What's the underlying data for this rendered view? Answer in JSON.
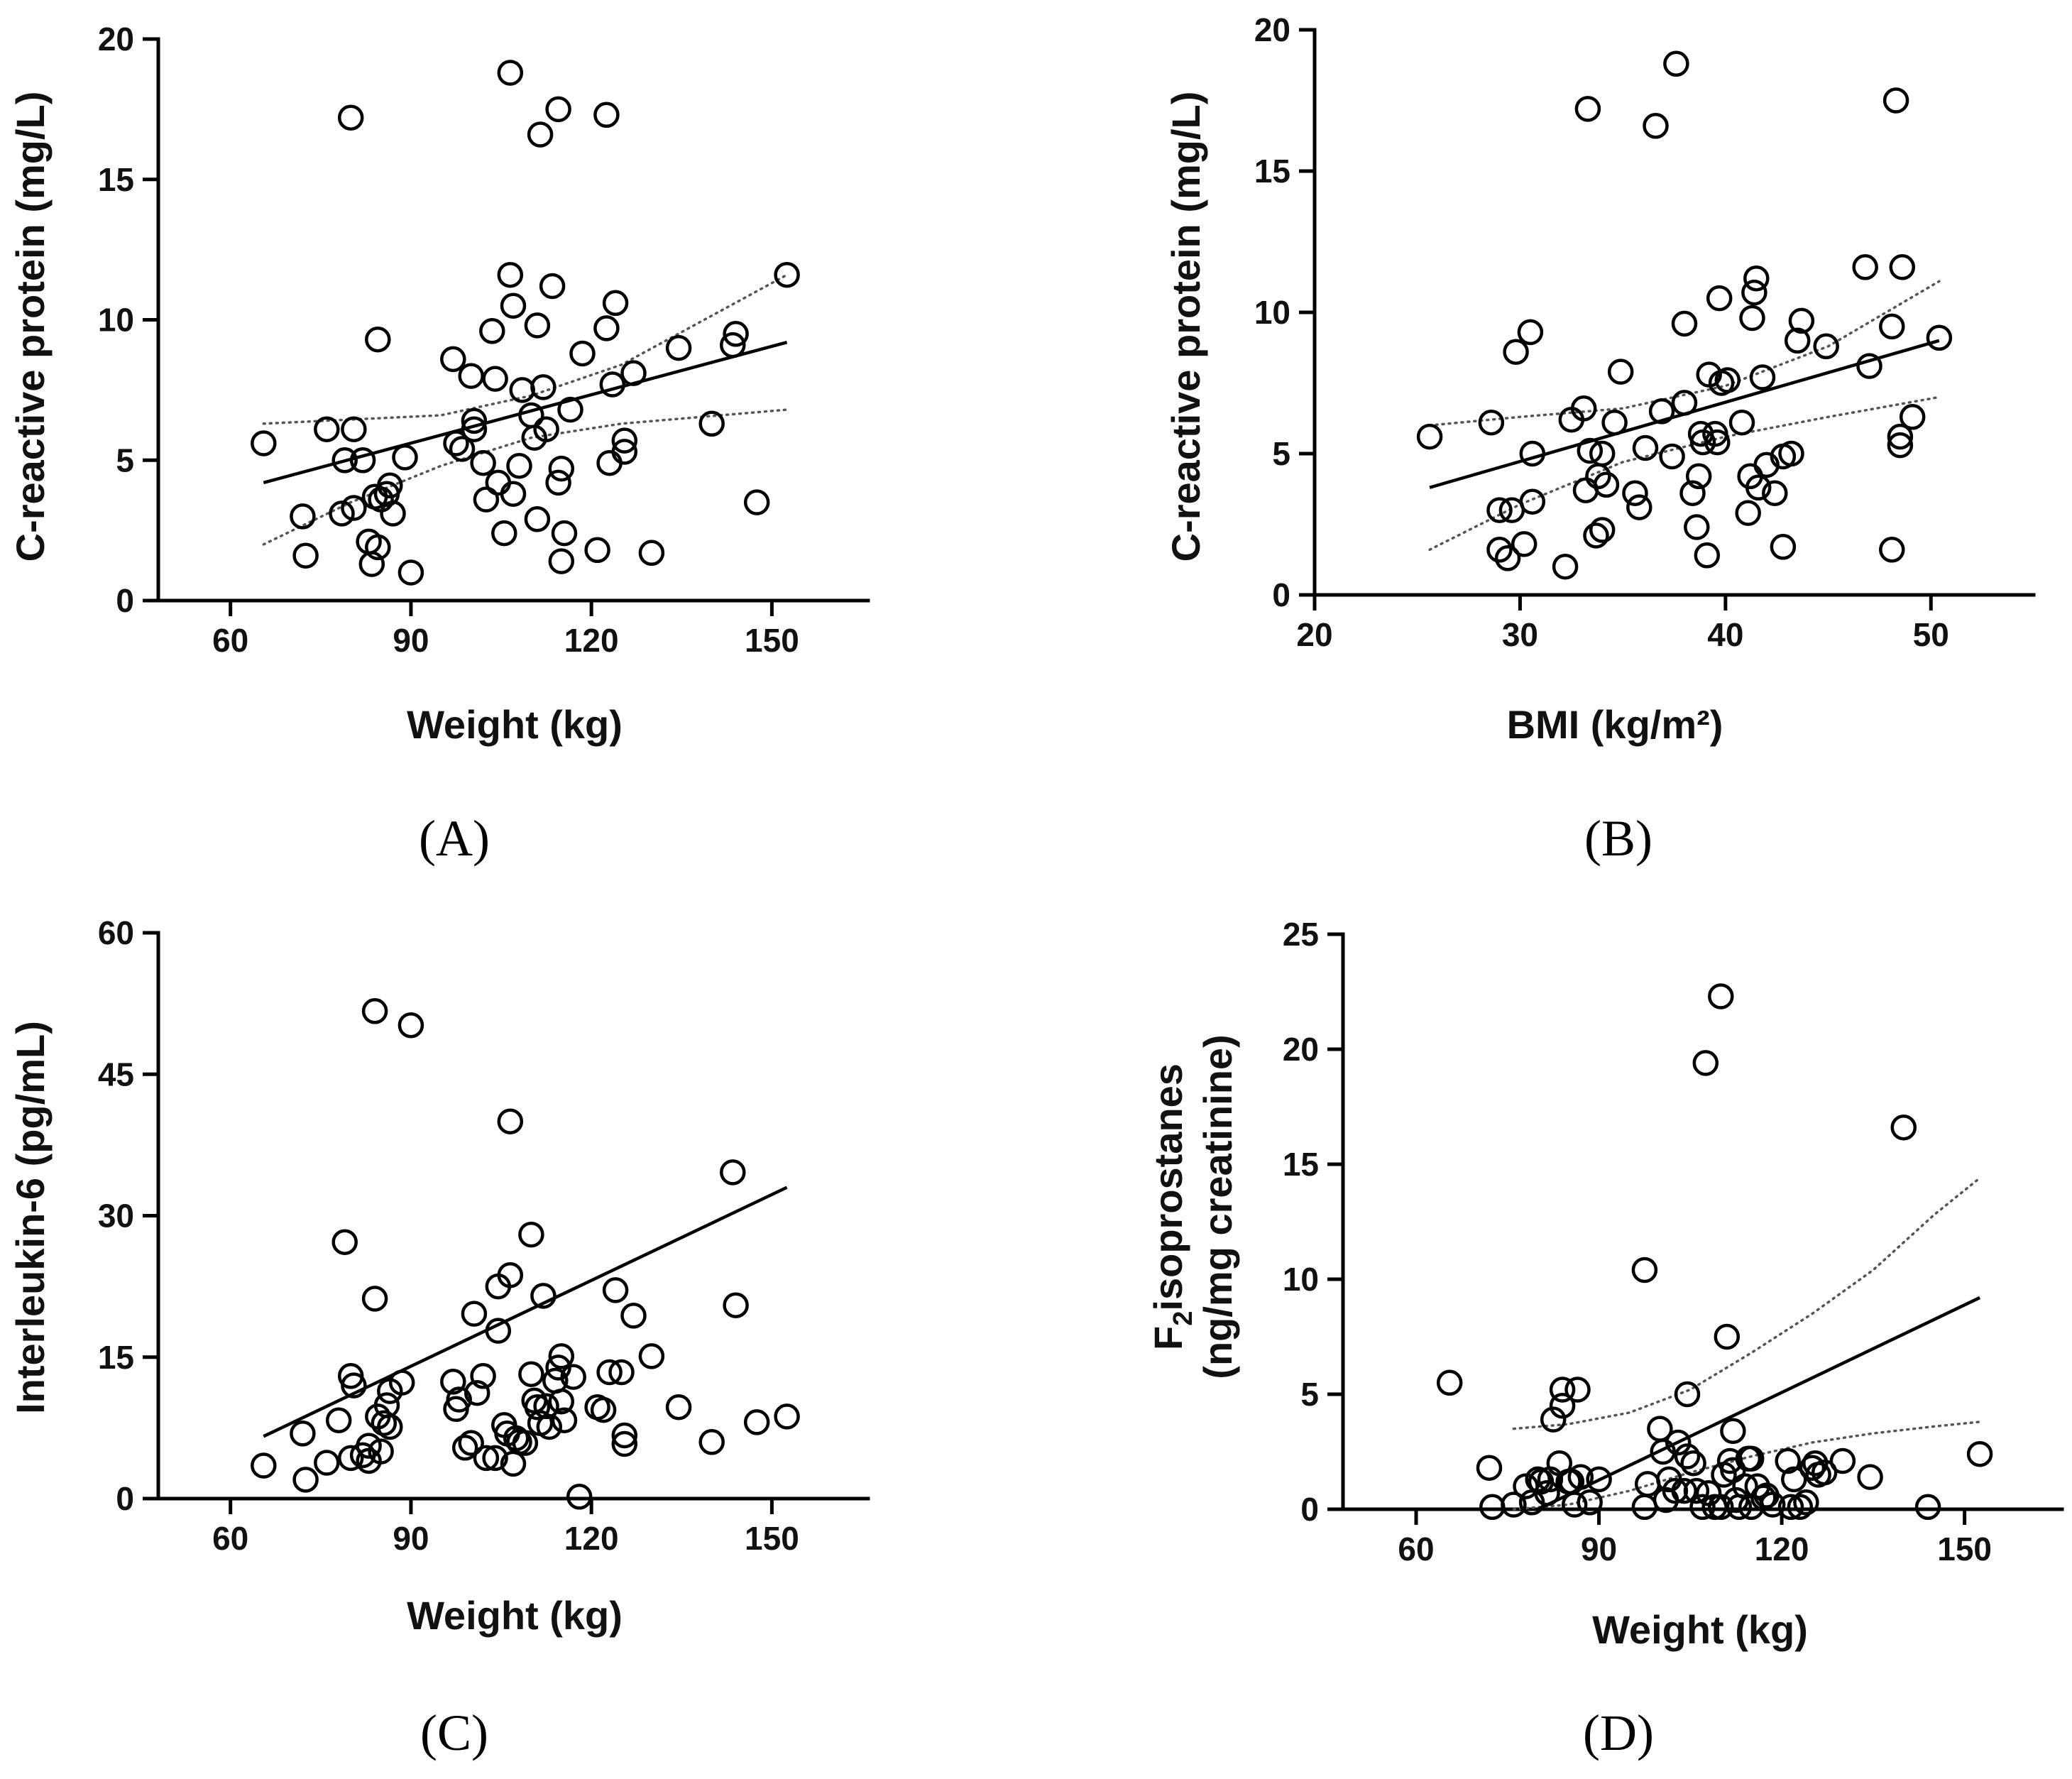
{
  "chart_data": [
    {
      "type": "scatter",
      "panel_label": "(A)",
      "title": "",
      "xlabel": "Weight (kg)",
      "ylabel": "C-reactive protein (mg/L)",
      "xlim": [
        48,
        166
      ],
      "ylim": [
        0,
        20
      ],
      "xticks": [
        60,
        90,
        120,
        150
      ],
      "yticks": [
        0,
        5,
        10,
        15,
        20
      ],
      "points": [
        [
          65.5,
          5.6
        ],
        [
          72,
          3.0
        ],
        [
          72.5,
          1.6
        ],
        [
          76,
          6.1
        ],
        [
          78.5,
          3.1
        ],
        [
          79,
          5.0
        ],
        [
          80,
          17.2
        ],
        [
          80.5,
          3.3
        ],
        [
          80.5,
          6.1
        ],
        [
          82,
          5.0
        ],
        [
          83,
          2.1
        ],
        [
          83.5,
          1.3
        ],
        [
          84,
          3.7
        ],
        [
          84.5,
          9.3
        ],
        [
          84.5,
          1.9
        ],
        [
          85,
          3.6
        ],
        [
          86,
          3.8
        ],
        [
          86.5,
          4.1
        ],
        [
          87,
          3.1
        ],
        [
          89,
          5.1
        ],
        [
          90,
          1.0
        ],
        [
          97,
          8.6
        ],
        [
          97.5,
          5.6
        ],
        [
          98.5,
          5.4
        ],
        [
          100,
          8.0
        ],
        [
          100.5,
          6.4
        ],
        [
          100.5,
          6.1
        ],
        [
          102,
          4.9
        ],
        [
          102.5,
          3.6
        ],
        [
          103.5,
          9.6
        ],
        [
          104,
          7.9
        ],
        [
          104.5,
          4.2
        ],
        [
          105.5,
          2.4
        ],
        [
          106.5,
          18.8
        ],
        [
          106.5,
          11.6
        ],
        [
          107,
          10.5
        ],
        [
          107,
          3.8
        ],
        [
          108,
          4.8
        ],
        [
          108.5,
          7.5
        ],
        [
          110,
          6.6
        ],
        [
          110.5,
          5.8
        ],
        [
          111,
          2.9
        ],
        [
          111,
          9.8
        ],
        [
          111.5,
          16.6
        ],
        [
          112,
          7.6
        ],
        [
          112.5,
          6.1
        ],
        [
          113.5,
          11.2
        ],
        [
          114.5,
          17.5
        ],
        [
          114.5,
          4.2
        ],
        [
          115,
          1.4
        ],
        [
          115,
          4.7
        ],
        [
          115.5,
          2.4
        ],
        [
          116.5,
          6.8
        ],
        [
          118.5,
          8.8
        ],
        [
          121,
          1.8
        ],
        [
          122.5,
          9.7
        ],
        [
          122.5,
          17.3
        ],
        [
          123,
          4.9
        ],
        [
          123.5,
          7.7
        ],
        [
          124,
          10.6
        ],
        [
          125.5,
          5.7
        ],
        [
          125.5,
          5.3
        ],
        [
          127,
          8.1
        ],
        [
          130,
          1.7
        ],
        [
          134.5,
          9.0
        ],
        [
          140,
          6.3
        ],
        [
          143.5,
          9.1
        ],
        [
          144,
          9.5
        ],
        [
          147.5,
          3.5
        ],
        [
          152.5,
          11.6
        ]
      ],
      "fit_line": {
        "x": [
          65.5,
          152.5
        ],
        "y": [
          4.2,
          9.2
        ]
      },
      "ci_upper": {
        "x": [
          65.5,
          95,
          110,
          125,
          152.5
        ],
        "y": [
          6.3,
          6.6,
          7.3,
          8.4,
          11.6
        ]
      },
      "ci_lower": {
        "x": [
          65.5,
          80,
          95,
          110,
          125,
          152.5
        ],
        "y": [
          2.0,
          3.5,
          4.8,
          5.8,
          6.3,
          6.8
        ]
      }
    },
    {
      "type": "scatter",
      "panel_label": "(B)",
      "title": "",
      "xlabel": "BMI (kg/m²)",
      "ylabel": "C-reactive protein (mg/L)",
      "xlim": [
        20,
        55
      ],
      "ylim": [
        0,
        20
      ],
      "xticks": [
        20,
        30,
        40,
        50
      ],
      "yticks": [
        0,
        5,
        10,
        15,
        20
      ],
      "points": [
        [
          25.6,
          5.6
        ],
        [
          28.6,
          6.1
        ],
        [
          29,
          3.0
        ],
        [
          29,
          1.6
        ],
        [
          29.4,
          1.3
        ],
        [
          29.6,
          3.0
        ],
        [
          29.8,
          8.6
        ],
        [
          30.2,
          1.8
        ],
        [
          30.5,
          9.3
        ],
        [
          30.6,
          3.3
        ],
        [
          30.6,
          5.0
        ],
        [
          32.2,
          1.0
        ],
        [
          32.5,
          6.2
        ],
        [
          33.1,
          6.6
        ],
        [
          33.2,
          3.7
        ],
        [
          33.3,
          17.2
        ],
        [
          33.4,
          5.1
        ],
        [
          33.7,
          2.1
        ],
        [
          33.8,
          4.2
        ],
        [
          34,
          5.0
        ],
        [
          34,
          2.3
        ],
        [
          34.2,
          3.9
        ],
        [
          34.6,
          6.1
        ],
        [
          34.9,
          7.9
        ],
        [
          35.6,
          3.6
        ],
        [
          35.8,
          3.1
        ],
        [
          36.1,
          5.2
        ],
        [
          36.6,
          16.6
        ],
        [
          36.9,
          6.5
        ],
        [
          37.4,
          4.9
        ],
        [
          37.6,
          18.8
        ],
        [
          38,
          6.8
        ],
        [
          38,
          9.6
        ],
        [
          38.4,
          3.6
        ],
        [
          38.6,
          2.4
        ],
        [
          38.7,
          4.2
        ],
        [
          38.8,
          5.7
        ],
        [
          38.9,
          5.4
        ],
        [
          39.1,
          1.4
        ],
        [
          39.2,
          7.8
        ],
        [
          39.5,
          5.7
        ],
        [
          39.6,
          5.4
        ],
        [
          39.7,
          10.5
        ],
        [
          39.8,
          7.5
        ],
        [
          40.1,
          7.6
        ],
        [
          40.8,
          6.1
        ],
        [
          41.1,
          2.9
        ],
        [
          41.2,
          4.2
        ],
        [
          41.3,
          9.8
        ],
        [
          41.4,
          10.7
        ],
        [
          41.5,
          11.2
        ],
        [
          41.6,
          3.8
        ],
        [
          41.8,
          7.7
        ],
        [
          42,
          4.6
        ],
        [
          42.4,
          3.6
        ],
        [
          42.8,
          4.9
        ],
        [
          42.8,
          1.7
        ],
        [
          43.2,
          5.0
        ],
        [
          43.5,
          9.0
        ],
        [
          43.7,
          9.7
        ],
        [
          44.9,
          8.8
        ],
        [
          46.8,
          11.6
        ],
        [
          47,
          8.1
        ],
        [
          48.1,
          1.6
        ],
        [
          48.1,
          9.5
        ],
        [
          48.3,
          17.5
        ],
        [
          48.5,
          5.6
        ],
        [
          48.5,
          5.3
        ],
        [
          48.6,
          11.6
        ],
        [
          49.1,
          6.3
        ],
        [
          50.4,
          9.1
        ]
      ],
      "fit_line": {
        "x": [
          25.6,
          50.4
        ],
        "y": [
          3.8,
          9.0
        ]
      },
      "ci_upper": {
        "x": [
          25.6,
          30,
          35,
          40,
          45,
          50.4
        ],
        "y": [
          6.0,
          6.3,
          6.6,
          7.4,
          8.8,
          11.1
        ]
      },
      "ci_lower": {
        "x": [
          25.6,
          30,
          35,
          40,
          45,
          50.4
        ],
        "y": [
          1.6,
          3.2,
          4.7,
          5.6,
          6.3,
          7.0
        ]
      }
    },
    {
      "type": "scatter",
      "panel_label": "(C)",
      "title": "",
      "xlabel": "Weight (kg)",
      "ylabel": "Interleukin-6 (pg/mL)",
      "xlim": [
        48,
        166
      ],
      "ylim": [
        0,
        60
      ],
      "xticks": [
        60,
        90,
        120,
        150
      ],
      "yticks": [
        0,
        15,
        30,
        45,
        60
      ],
      "points": [
        [
          65.5,
          3.5
        ],
        [
          72,
          6.9
        ],
        [
          72.5,
          2.0
        ],
        [
          76,
          3.8
        ],
        [
          78,
          8.3
        ],
        [
          79,
          27.2
        ],
        [
          80,
          13.0
        ],
        [
          80,
          4.3
        ],
        [
          80.5,
          12.0
        ],
        [
          82,
          4.6
        ],
        [
          83,
          5.6
        ],
        [
          83,
          4.0
        ],
        [
          84,
          51.7
        ],
        [
          84,
          21.2
        ],
        [
          84.5,
          8.7
        ],
        [
          85,
          5.0
        ],
        [
          85.5,
          8.0
        ],
        [
          86.5,
          11.4
        ],
        [
          86.5,
          7.6
        ],
        [
          86,
          9.9
        ],
        [
          88.5,
          12.3
        ],
        [
          90,
          50.2
        ],
        [
          97,
          12.4
        ],
        [
          97.5,
          9.5
        ],
        [
          98,
          10.5
        ],
        [
          99,
          5.4
        ],
        [
          100,
          5.9
        ],
        [
          100.5,
          19.6
        ],
        [
          101,
          11.2
        ],
        [
          102,
          13.0
        ],
        [
          102.5,
          4.3
        ],
        [
          104,
          4.3
        ],
        [
          104.5,
          17.8
        ],
        [
          104.5,
          22.5
        ],
        [
          105.5,
          7.8
        ],
        [
          106,
          6.9
        ],
        [
          106.5,
          40.0
        ],
        [
          106.5,
          23.7
        ],
        [
          107,
          3.7
        ],
        [
          107.5,
          6.4
        ],
        [
          108,
          6.0
        ],
        [
          109,
          5.9
        ],
        [
          110,
          28.0
        ],
        [
          110,
          13.2
        ],
        [
          110.5,
          10.4
        ],
        [
          111,
          9.7
        ],
        [
          111.5,
          8.0
        ],
        [
          112,
          21.5
        ],
        [
          112.5,
          9.8
        ],
        [
          113,
          7.6
        ],
        [
          114,
          12.5
        ],
        [
          114.5,
          13.9
        ],
        [
          115,
          15.1
        ],
        [
          115.5,
          8.3
        ],
        [
          115,
          10.3
        ],
        [
          117,
          12.9
        ],
        [
          118,
          0.2
        ],
        [
          121,
          9.7
        ],
        [
          122,
          9.4
        ],
        [
          123,
          13.4
        ],
        [
          124,
          22.1
        ],
        [
          125,
          13.4
        ],
        [
          125.5,
          6.7
        ],
        [
          125.5,
          5.8
        ],
        [
          127,
          19.4
        ],
        [
          130,
          15.1
        ],
        [
          134.5,
          9.7
        ],
        [
          140,
          6.0
        ],
        [
          143.5,
          34.6
        ],
        [
          144,
          20.5
        ],
        [
          147.5,
          8.1
        ],
        [
          152.5,
          8.7
        ]
      ],
      "fit_line": {
        "x": [
          65.5,
          152.5
        ],
        "y": [
          6.6,
          33.0
        ]
      }
    },
    {
      "type": "scatter",
      "panel_label": "(D)",
      "title": "",
      "xlabel": "Weight (kg)",
      "ylabel_sub": "2",
      "ylabel_line1": "F",
      "ylabel_line1_rest": "isoprostanes",
      "ylabel_line2": "(ng/mg creatinine)",
      "xlim": [
        48,
        166
      ],
      "ylim": [
        0,
        25
      ],
      "xticks": [
        60,
        90,
        120,
        150
      ],
      "yticks": [
        0,
        5,
        10,
        15,
        20,
        25
      ],
      "points": [
        [
          65.5,
          5.5
        ],
        [
          72,
          1.8
        ],
        [
          72.5,
          0.1
        ],
        [
          76,
          0.2
        ],
        [
          78,
          1.0
        ],
        [
          79,
          0.3
        ],
        [
          80,
          1.3
        ],
        [
          80.5,
          1.2
        ],
        [
          81.5,
          0.7
        ],
        [
          82,
          1.3
        ],
        [
          82.5,
          3.9
        ],
        [
          83.5,
          2.0
        ],
        [
          84,
          5.2
        ],
        [
          84,
          4.5
        ],
        [
          85,
          1.2
        ],
        [
          85.5,
          1.2
        ],
        [
          86,
          0.2
        ],
        [
          86.5,
          5.2
        ],
        [
          87,
          1.4
        ],
        [
          88.5,
          0.3
        ],
        [
          90,
          1.3
        ],
        [
          97.5,
          10.4
        ],
        [
          97.5,
          0.1
        ],
        [
          98,
          1.1
        ],
        [
          100,
          3.5
        ],
        [
          100.5,
          2.5
        ],
        [
          101,
          0.4
        ],
        [
          101.5,
          1.3
        ],
        [
          102.5,
          0.8
        ],
        [
          103,
          2.9
        ],
        [
          104,
          0.8
        ],
        [
          104.5,
          2.3
        ],
        [
          104.5,
          5.0
        ],
        [
          105.5,
          2.0
        ],
        [
          106,
          0.8
        ],
        [
          107,
          0.1
        ],
        [
          107.5,
          19.4
        ],
        [
          108,
          0.7
        ],
        [
          109,
          0.1
        ],
        [
          110,
          0.1
        ],
        [
          110,
          22.3
        ],
        [
          110.5,
          1.5
        ],
        [
          111,
          7.5
        ],
        [
          111.5,
          2.1
        ],
        [
          112,
          1.7
        ],
        [
          112,
          3.4
        ],
        [
          112.5,
          0.4
        ],
        [
          113,
          0.1
        ],
        [
          114,
          1.0
        ],
        [
          114.5,
          2.2
        ],
        [
          115,
          0.1
        ],
        [
          115,
          2.2
        ],
        [
          116,
          1.0
        ],
        [
          117,
          0.5
        ],
        [
          117.5,
          0.6
        ],
        [
          118.5,
          0.2
        ],
        [
          121,
          2.1
        ],
        [
          121.5,
          0.1
        ],
        [
          122,
          1.3
        ],
        [
          123,
          0.1
        ],
        [
          124,
          0.3
        ],
        [
          125,
          1.8
        ],
        [
          125.5,
          2.0
        ],
        [
          126,
          1.5
        ],
        [
          127,
          1.6
        ],
        [
          130,
          2.1
        ],
        [
          134.5,
          1.4
        ],
        [
          140,
          16.6
        ],
        [
          144,
          0.1
        ],
        [
          152.5,
          2.4
        ]
      ],
      "fit_line": {
        "x": [
          80,
          152.5
        ],
        "y": [
          0.0,
          9.2
        ]
      },
      "ci_upper": {
        "x": [
          76,
          85,
          95,
          105,
          115,
          125,
          135,
          145,
          152.5
        ],
        "y": [
          3.5,
          3.7,
          4.2,
          5.2,
          6.8,
          8.5,
          10.4,
          12.8,
          14.4
        ]
      },
      "ci_lower": {
        "x": [
          76,
          85,
          95,
          105,
          115,
          125,
          135,
          145,
          152.5
        ],
        "y": [
          0.0,
          0.2,
          0.8,
          1.6,
          2.3,
          2.9,
          3.3,
          3.6,
          3.8
        ]
      }
    }
  ]
}
